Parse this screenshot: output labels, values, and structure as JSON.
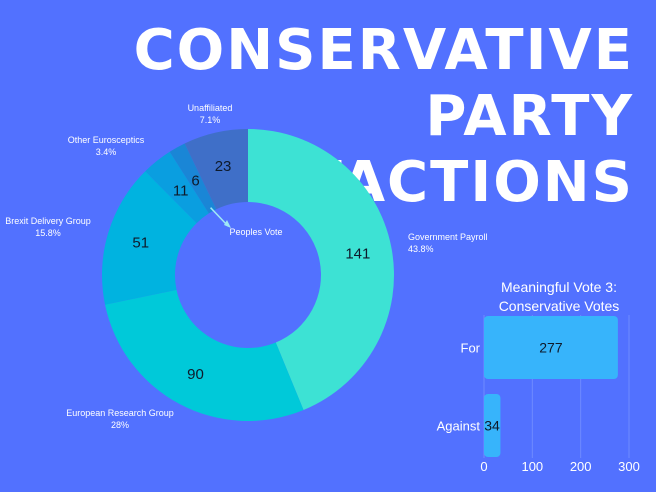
{
  "title_lines": [
    "CONSERVATIVE",
    "PARTY",
    "FACTIONS"
  ],
  "chart_data": [
    {
      "type": "pie",
      "donut": true,
      "slices": [
        {
          "label": "Government Payroll",
          "pct_label": "43.8%",
          "value": 141,
          "color": "#3de2d4"
        },
        {
          "label": "European Research Group",
          "pct_label": "28%",
          "value": 90,
          "color": "#00c9d9"
        },
        {
          "label": "Brexit Delivery Group",
          "pct_label": "15.8%",
          "value": 51,
          "color": "#00b3e0"
        },
        {
          "label": "Other Eurosceptics",
          "pct_label": "3.4%",
          "value": 11,
          "color": "#0a9ee0"
        },
        {
          "label": "Peoples Vote",
          "pct_label": "",
          "value": 6,
          "color": "#1a86d6"
        },
        {
          "label": "Unaffiliated",
          "pct_label": "7.1%",
          "value": 23,
          "color": "#3f6fc8"
        }
      ]
    },
    {
      "type": "bar",
      "orientation": "horizontal",
      "title_lines": [
        "Meaningful Vote 3:",
        "Conservative Votes"
      ],
      "categories": [
        "For",
        "Against"
      ],
      "values": [
        277,
        34
      ],
      "xlim": [
        0,
        300
      ],
      "xticks": [
        0,
        100,
        200,
        300
      ],
      "color": "#37b4fb"
    }
  ]
}
